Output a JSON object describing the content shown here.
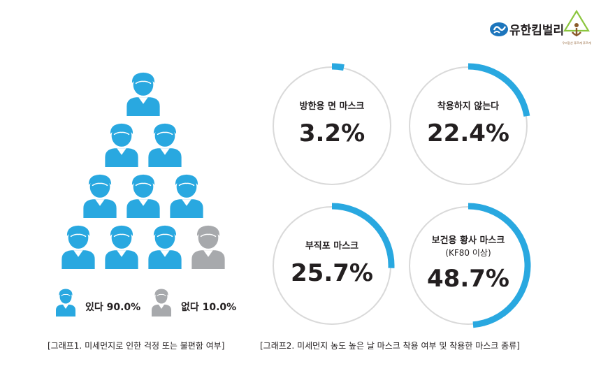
{
  "brand": {
    "name": "유한킴벌리",
    "logo_mark": "yk-swirl-logo",
    "tree_mark": "tree-logo",
    "tree_tagline": "우리강산 푸르게 푸르게"
  },
  "colors": {
    "accent": "#29a8e0",
    "gray": "#a7a9ac",
    "ring_outline": "#d9d9d9",
    "text": "#231f20",
    "tree_green": "#8cc63f",
    "tree_brown": "#8b5a2b"
  },
  "chart_data": [
    {
      "type": "pictogram",
      "caption": "[그래프1. 미세먼지로 인한 걱정 또는 불편함 여부]",
      "icon": "person-icon",
      "total_icons": 10,
      "rows": [
        1,
        2,
        3,
        4
      ],
      "series": [
        {
          "name": "있다",
          "value": 90.0,
          "label": "있다 90.0%",
          "icons": 9,
          "color": "#29a8e0"
        },
        {
          "name": "없다",
          "value": 10.0,
          "label": "없다 10.0%",
          "icons": 1,
          "color": "#a7a9ac"
        }
      ]
    },
    {
      "type": "ring",
      "caption": "[그래프2. 미세먼지 농도 높은 날 마스크 착용 여부 및 착용한 마스크 종류]",
      "items": [
        {
          "label": "방한용 면 마스크",
          "sublabel": "",
          "value": 3.2,
          "display": "3.2%"
        },
        {
          "label": "착용하지 않는다",
          "sublabel": "",
          "value": 22.4,
          "display": "22.4%"
        },
        {
          "label": "부직포 마스크",
          "sublabel": "",
          "value": 25.7,
          "display": "25.7%"
        },
        {
          "label": "보건용 황사 마스크",
          "sublabel": "(KF80 이상)",
          "value": 48.7,
          "display": "48.7%"
        }
      ]
    }
  ]
}
